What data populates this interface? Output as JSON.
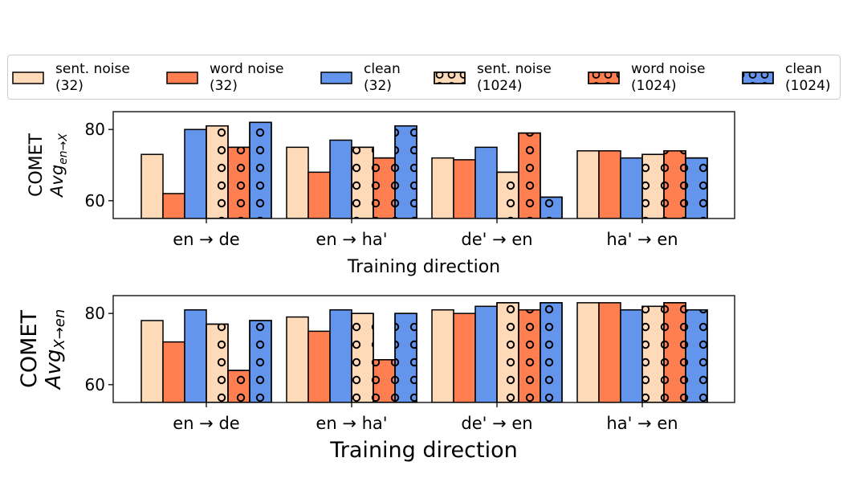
{
  "legend": {
    "entries": [
      {
        "line1": "sent. noise",
        "line2": "(32)",
        "series": 0
      },
      {
        "line1": "word noise",
        "line2": "(32)",
        "series": 1
      },
      {
        "line1": "clean",
        "line2": "(32)",
        "series": 2
      },
      {
        "line1": "sent. noise",
        "line2": "(1024)",
        "series": 3
      },
      {
        "line1": "word noise",
        "line2": "(1024)",
        "series": 4
      },
      {
        "line1": "clean",
        "line2": "(1024)",
        "series": 5
      }
    ]
  },
  "chart_data": [
    {
      "type": "bar",
      "ylabel_line1": "COMET",
      "ylabel_line2_base": "Avg",
      "ylabel_line2_sub": "en→X",
      "xlabel": "Training direction",
      "categories": [
        "en → de",
        "en → ha'",
        "de' → en",
        "ha' → en"
      ],
      "ylim": [
        55,
        85
      ],
      "yticks": [
        60,
        80
      ],
      "series": [
        {
          "name": "sent. noise (32)",
          "color": "#FFDAB9",
          "hatch": false,
          "values": [
            73,
            75,
            72,
            74
          ]
        },
        {
          "name": "word noise (32)",
          "color": "#FF7F50",
          "hatch": false,
          "values": [
            62,
            68,
            71.5,
            74
          ]
        },
        {
          "name": "clean (32)",
          "color": "#6495ED",
          "hatch": false,
          "values": [
            80,
            77,
            75,
            72
          ]
        },
        {
          "name": "sent. noise (1024)",
          "color": "#FFDAB9",
          "hatch": true,
          "values": [
            81,
            75,
            68,
            73
          ]
        },
        {
          "name": "word noise (1024)",
          "color": "#FF7F50",
          "hatch": true,
          "values": [
            75,
            72,
            79,
            74
          ]
        },
        {
          "name": "clean (1024)",
          "color": "#6495ED",
          "hatch": true,
          "values": [
            82,
            81,
            61,
            72
          ]
        }
      ]
    },
    {
      "type": "bar",
      "ylabel_line1": "COMET",
      "ylabel_line2_base": "Avg",
      "ylabel_line2_sub": "X→en",
      "xlabel": "Training direction",
      "categories": [
        "en → de",
        "en → ha'",
        "de' → en",
        "ha' → en"
      ],
      "ylim": [
        55,
        85
      ],
      "yticks": [
        60,
        80
      ],
      "series": [
        {
          "name": "sent. noise (32)",
          "color": "#FFDAB9",
          "hatch": false,
          "values": [
            78,
            79,
            81,
            83
          ]
        },
        {
          "name": "word noise (32)",
          "color": "#FF7F50",
          "hatch": false,
          "values": [
            72,
            75,
            80,
            83
          ]
        },
        {
          "name": "clean (32)",
          "color": "#6495ED",
          "hatch": false,
          "values": [
            81,
            81,
            82,
            81
          ]
        },
        {
          "name": "sent. noise (1024)",
          "color": "#FFDAB9",
          "hatch": true,
          "values": [
            77,
            80,
            83,
            82
          ]
        },
        {
          "name": "word noise (1024)",
          "color": "#FF7F50",
          "hatch": true,
          "values": [
            64,
            67,
            81,
            83
          ]
        },
        {
          "name": "clean (1024)",
          "color": "#6495ED",
          "hatch": true,
          "values": [
            78,
            80,
            83,
            81
          ]
        }
      ]
    }
  ]
}
